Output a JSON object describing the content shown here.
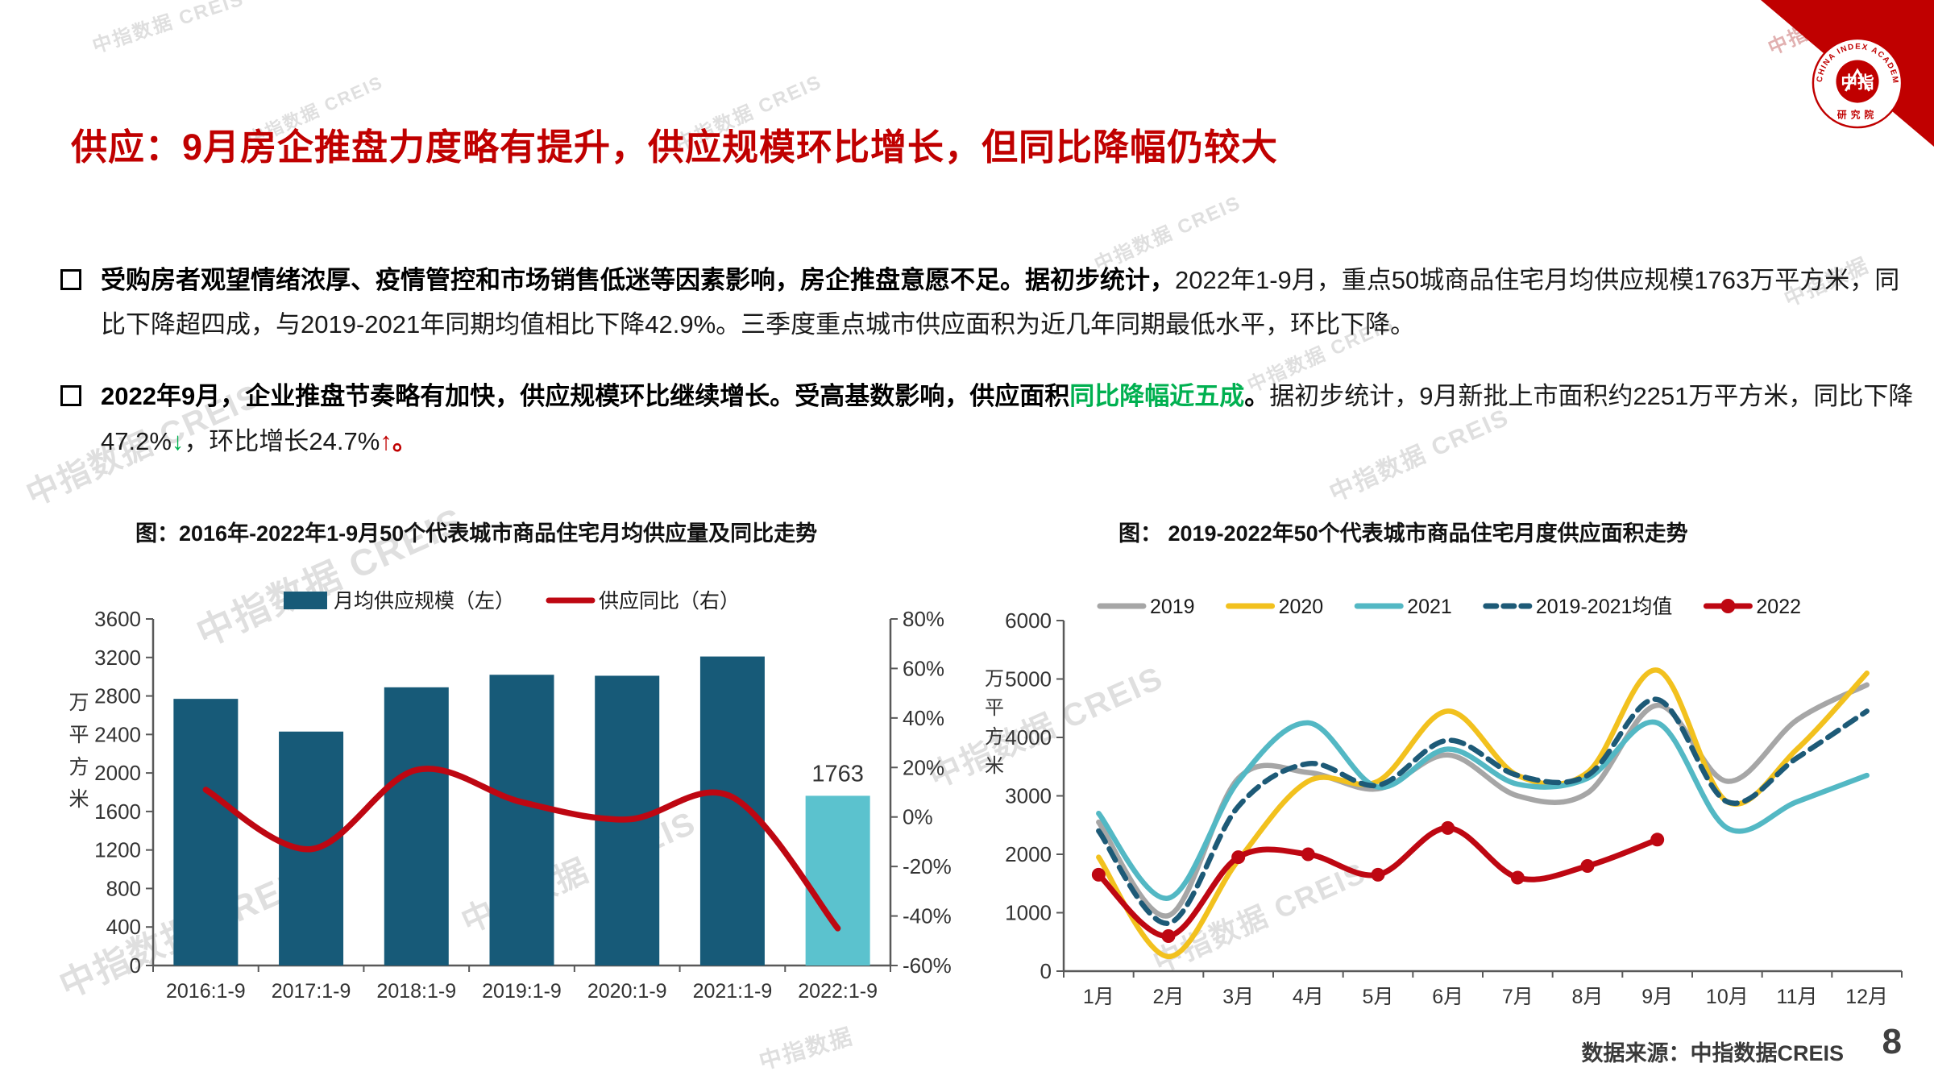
{
  "slide": {
    "title": "供应：9月房企推盘力度略有提升，供应规模环比增长，但同比降幅仍较大",
    "footer_source": "数据来源：中指数据CREIS",
    "page_number": "8",
    "watermark": "中指数据 CREIS",
    "watermark_short": "中指数据",
    "logo": {
      "arc_text": "CHINA INDEX ACADEMY",
      "seal_center": "中指",
      "seal_bottom": "研究院"
    }
  },
  "bullets": [
    {
      "segments": [
        {
          "style": "bold",
          "text": "受购房者观望情绪浓厚、疫情管控和市场销售低迷等因素影响，房企推盘意愿不足。据初步统计，"
        },
        {
          "style": "regular",
          "text": "2022年1-9月，重点50城商品住宅月均供应规模1763万平方米，同比下降超四成，与2019-2021年同期均值相比下降42.9%。三季度重点城市供应面积为近几年同期最低水平，环比下降。"
        }
      ]
    },
    {
      "segments": [
        {
          "style": "bold",
          "text": "2022年9月，企业推盘节奏略有加快，供应规模环比继续增长。受高基数影响，供应面积"
        },
        {
          "style": "boldGreen",
          "text": "同比降幅近五成"
        },
        {
          "style": "bold",
          "text": "。"
        },
        {
          "style": "regular",
          "text": "据初步统计，9月新批上市面积约2251万平方米，同比下降47.2%"
        },
        {
          "style": "green",
          "text": "↓"
        },
        {
          "style": "regular",
          "text": "，环比增长24.7%"
        },
        {
          "style": "red",
          "text": "↑"
        },
        {
          "style": "red",
          "text": "。"
        }
      ]
    }
  ],
  "colors": {
    "title_red": "#C00000",
    "bar_default": "#175A78",
    "bar_highlight": "#5BC2CE",
    "yoy_line": "#BE0712",
    "green_text": "#00B050",
    "axis": "#595959",
    "tick_text": "#333333"
  },
  "chart_data": [
    {
      "type": "bar",
      "title": "图：2016年-2022年1-9月50个代表城市商品住宅月均供应量及同比走势",
      "categories": [
        "2016:1-9",
        "2017:1-9",
        "2018:1-9",
        "2019:1-9",
        "2020:1-9",
        "2021:1-9",
        "2022:1-9"
      ],
      "bar_series": {
        "name": "月均供应规模（左）",
        "values": [
          2770,
          2430,
          2890,
          3020,
          3010,
          3210,
          1763
        ],
        "color": "#175A78",
        "highlight_last_color": "#5BC2CE"
      },
      "line_series": {
        "name": "供应同比（右）",
        "values": [
          11,
          -13,
          19,
          6,
          -1,
          8,
          -45
        ],
        "color": "#BE0712",
        "unit": "%"
      },
      "bar_label": {
        "index": 6,
        "text": "1763"
      },
      "left_axis": {
        "min": 0,
        "max": 3600,
        "step": 400,
        "label": "万平方米"
      },
      "right_axis": {
        "min": -60,
        "max": 80,
        "step": 20,
        "suffix": "%"
      },
      "legend_position": "top",
      "grid": false
    },
    {
      "type": "line",
      "title": "图： 2019-2022年50个代表城市商品住宅月度供应面积走势",
      "x": [
        "1月",
        "2月",
        "3月",
        "4月",
        "5月",
        "6月",
        "7月",
        "8月",
        "9月",
        "10月",
        "11月",
        "12月"
      ],
      "ylabel": "万平方米",
      "ylim": [
        0,
        6000
      ],
      "ystep": 1000,
      "legend_position": "top",
      "grid": false,
      "series": [
        {
          "name": "2019",
          "style": "solid",
          "color": "#A6A6A6",
          "values": [
            2550,
            950,
            3300,
            3400,
            3120,
            3700,
            3000,
            3050,
            4550,
            3250,
            4300,
            4900
          ]
        },
        {
          "name": "2020",
          "style": "solid",
          "color": "#F2C11E",
          "values": [
            1950,
            250,
            1900,
            3250,
            3250,
            4450,
            3350,
            3400,
            5150,
            2900,
            3800,
            5100
          ]
        },
        {
          "name": "2021",
          "style": "solid",
          "color": "#53B8C4",
          "values": [
            2700,
            1250,
            3250,
            4250,
            3150,
            3800,
            3200,
            3300,
            4250,
            2450,
            2900,
            3350
          ]
        },
        {
          "name": "2019-2021均值",
          "style": "dashed",
          "color": "#1D5A77",
          "values": [
            2400,
            820,
            2820,
            3550,
            3180,
            3950,
            3350,
            3350,
            4650,
            2900,
            3650,
            4450
          ]
        },
        {
          "name": "2022",
          "style": "marker",
          "color": "#BE0712",
          "values": [
            1650,
            600,
            1950,
            2000,
            1650,
            2450,
            1600,
            1800,
            2251,
            null,
            null,
            null
          ]
        }
      ]
    }
  ]
}
